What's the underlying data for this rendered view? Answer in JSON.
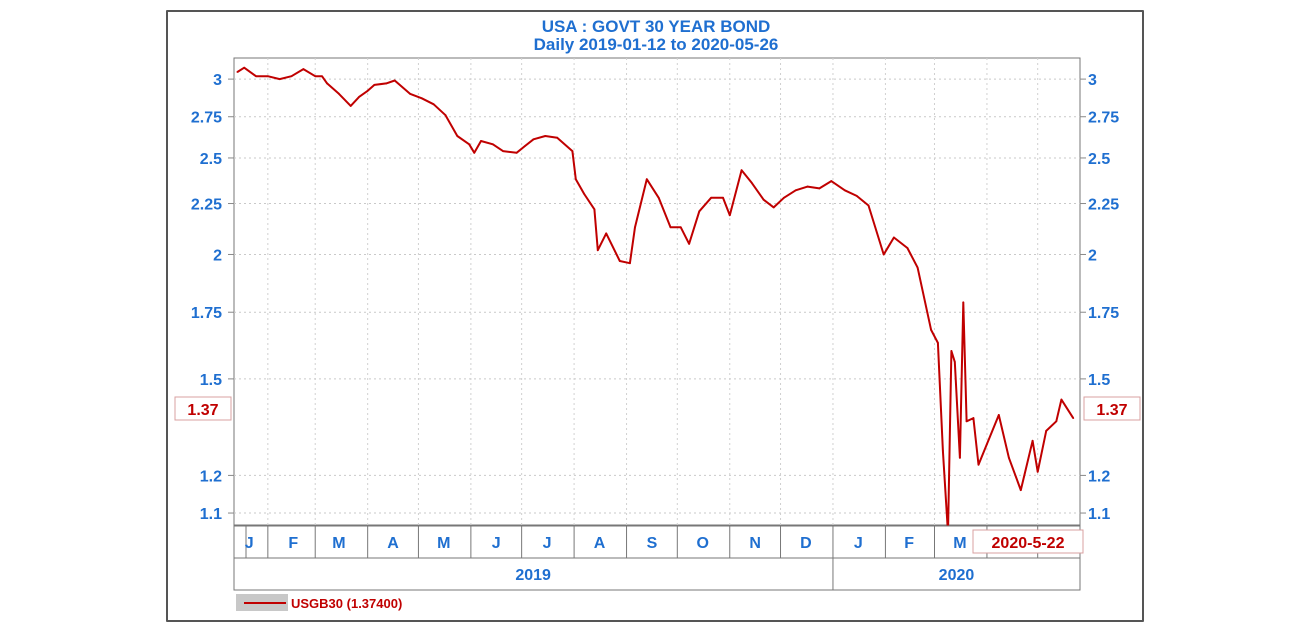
{
  "chart_data": {
    "type": "line",
    "title": "USA : GOVT 30 YEAR BOND",
    "subtitle": "Daily  2019-01-12 to 2020-05-26",
    "y_scale": "log",
    "y_ticks": [
      3,
      2.75,
      2.5,
      2.25,
      2,
      1.75,
      1.5,
      1.2,
      1.1
    ],
    "y_tick_labels": [
      "3",
      "2.75",
      "2.5",
      "2.25",
      "2",
      "1.75",
      "1.5",
      "1.2",
      "1.1"
    ],
    "ylim": [
      1.07,
      3.15
    ],
    "xlim": [
      "2019-01-12",
      "2020-05-26"
    ],
    "month_labels": [
      {
        "label": "J",
        "date": "2019-01-21"
      },
      {
        "label": "F",
        "date": "2019-02-16"
      },
      {
        "label": "M",
        "date": "2019-03-15"
      },
      {
        "label": "A",
        "date": "2019-04-16"
      },
      {
        "label": "M",
        "date": "2019-05-16"
      },
      {
        "label": "J",
        "date": "2019-06-16"
      },
      {
        "label": "J",
        "date": "2019-07-16"
      },
      {
        "label": "A",
        "date": "2019-08-16"
      },
      {
        "label": "S",
        "date": "2019-09-16"
      },
      {
        "label": "O",
        "date": "2019-10-16"
      },
      {
        "label": "N",
        "date": "2019-11-16"
      },
      {
        "label": "D",
        "date": "2019-12-16"
      },
      {
        "label": "J",
        "date": "2020-01-16"
      },
      {
        "label": "F",
        "date": "2020-02-15"
      },
      {
        "label": "M",
        "date": "2020-03-16"
      }
    ],
    "year_labels": [
      {
        "label": "2019",
        "start": "2019-01-12",
        "end": "2019-12-31"
      },
      {
        "label": "2020",
        "start": "2020-01-01",
        "end": "2020-05-26"
      }
    ],
    "last_value_label": "1.37",
    "last_date_label": "2020-5-22",
    "grid": true,
    "legend_position": "bottom-left",
    "series": [
      {
        "name": "USGB30 (1.37400)",
        "color": "#c00000",
        "x": [
          "2019-01-14",
          "2019-01-18",
          "2019-01-25",
          "2019-02-01",
          "2019-02-08",
          "2019-02-15",
          "2019-02-22",
          "2019-03-01",
          "2019-03-05",
          "2019-03-08",
          "2019-03-15",
          "2019-03-22",
          "2019-03-27",
          "2019-04-01",
          "2019-04-05",
          "2019-04-12",
          "2019-04-17",
          "2019-04-26",
          "2019-05-03",
          "2019-05-10",
          "2019-05-17",
          "2019-05-24",
          "2019-05-31",
          "2019-06-03",
          "2019-06-07",
          "2019-06-14",
          "2019-06-20",
          "2019-06-28",
          "2019-07-03",
          "2019-07-08",
          "2019-07-15",
          "2019-07-22",
          "2019-07-31",
          "2019-08-02",
          "2019-08-07",
          "2019-08-13",
          "2019-08-15",
          "2019-08-20",
          "2019-08-28",
          "2019-09-03",
          "2019-09-06",
          "2019-09-13",
          "2019-09-20",
          "2019-09-27",
          "2019-10-03",
          "2019-10-08",
          "2019-10-14",
          "2019-10-21",
          "2019-10-28",
          "2019-11-01",
          "2019-11-08",
          "2019-11-14",
          "2019-11-21",
          "2019-11-27",
          "2019-12-03",
          "2019-12-10",
          "2019-12-17",
          "2019-12-24",
          "2019-12-31",
          "2020-01-08",
          "2020-01-15",
          "2020-01-22",
          "2020-01-31",
          "2020-02-06",
          "2020-02-14",
          "2020-02-20",
          "2020-02-28",
          "2020-03-03",
          "2020-03-06",
          "2020-03-09",
          "2020-03-11",
          "2020-03-13",
          "2020-03-16",
          "2020-03-18",
          "2020-03-20",
          "2020-03-24",
          "2020-03-27",
          "2020-04-01",
          "2020-04-08",
          "2020-04-14",
          "2020-04-21",
          "2020-04-28",
          "2020-05-01",
          "2020-05-06",
          "2020-05-12",
          "2020-05-15",
          "2020-05-22"
        ],
        "values": [
          3.05,
          3.08,
          3.02,
          3.02,
          3.0,
          3.02,
          3.07,
          3.02,
          3.02,
          2.97,
          2.9,
          2.82,
          2.88,
          2.92,
          2.96,
          2.97,
          2.99,
          2.9,
          2.87,
          2.83,
          2.76,
          2.63,
          2.58,
          2.53,
          2.6,
          2.58,
          2.54,
          2.53,
          2.57,
          2.61,
          2.63,
          2.62,
          2.54,
          2.38,
          2.3,
          2.22,
          2.02,
          2.1,
          1.97,
          1.96,
          2.13,
          2.38,
          2.28,
          2.13,
          2.13,
          2.05,
          2.21,
          2.28,
          2.28,
          2.19,
          2.43,
          2.36,
          2.27,
          2.23,
          2.28,
          2.32,
          2.34,
          2.33,
          2.37,
          2.32,
          2.29,
          2.24,
          2.0,
          2.08,
          2.03,
          1.94,
          1.68,
          1.63,
          1.27,
          1.05,
          1.6,
          1.56,
          1.25,
          1.79,
          1.36,
          1.37,
          1.23,
          1.29,
          1.38,
          1.25,
          1.16,
          1.3,
          1.21,
          1.33,
          1.36,
          1.43,
          1.37
        ]
      }
    ]
  }
}
